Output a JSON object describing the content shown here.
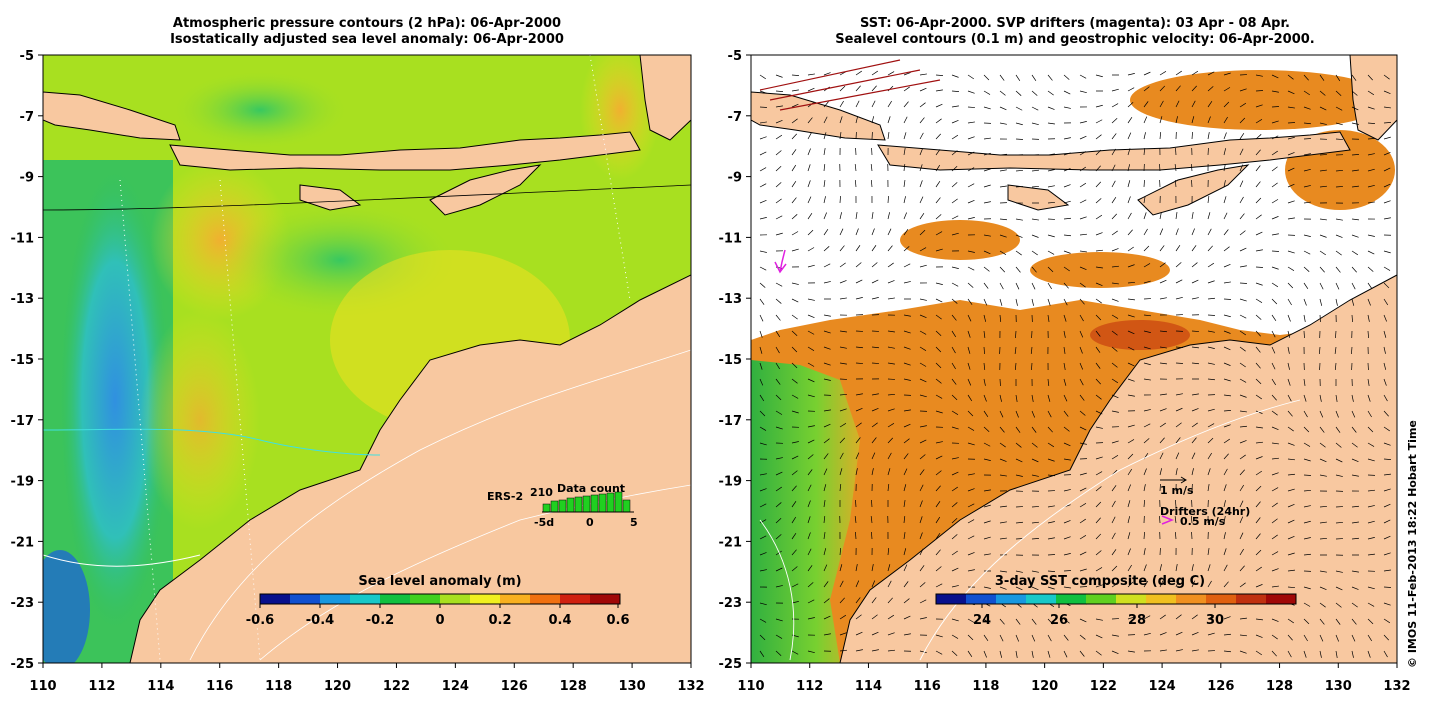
{
  "left_panel": {
    "title_line1": "Atmospheric pressure contours (2 hPa): 06-Apr-2000",
    "title_line2": "Isostatically adjusted sea level anomaly: 06-Apr-2000",
    "colorbar_label": "Sea level anomaly (m)",
    "colorbar_ticks": [
      "-0.6",
      "-0.4",
      "-0.2",
      "0",
      "0.2",
      "0.4",
      "0.6"
    ],
    "colorbar_colors": [
      "#08108c",
      "#1050d0",
      "#1898e0",
      "#18c8c8",
      "#10c040",
      "#40d020",
      "#a8e020",
      "#f0f020",
      "#f8b020",
      "#f07010",
      "#d02010",
      "#a00808"
    ],
    "inset_title": "Data count",
    "inset_count": "210",
    "inset_satellite": "ERS-2",
    "inset_ticks": [
      "-5d",
      "0",
      "5"
    ],
    "inset_bar_heights": [
      0.4,
      0.55,
      0.6,
      0.7,
      0.75,
      0.8,
      0.85,
      0.9,
      0.95,
      1.0,
      0.6
    ],
    "inset_bar_color": "#20d020",
    "inset_label_color": "#20d020"
  },
  "right_panel": {
    "title_line1": "SST: 06-Apr-2000. SVP drifters (magenta): 03 Apr - 08 Apr.",
    "title_line2": "Sealevel contours (0.1 m) and geostrophic velocity: 06-Apr-2000.",
    "colorbar_label": "3-day SST composite (deg C)",
    "colorbar_ticks": [
      "24",
      "26",
      "28",
      "30"
    ],
    "colorbar_colors": [
      "#08108c",
      "#1050d0",
      "#1898e0",
      "#18c8c8",
      "#10c040",
      "#60d020",
      "#d0e020",
      "#f0c020",
      "#f09020",
      "#e06010",
      "#c03010",
      "#a00808"
    ],
    "velocity_scale_label": "1 m/s",
    "drifters_label": "Drifters (24hr)",
    "drifter_scale_label": "0.5 m/s",
    "drifter_color": "#e020e0"
  },
  "axes": {
    "lon_ticks": [
      "110",
      "112",
      "114",
      "116",
      "118",
      "120",
      "122",
      "124",
      "126",
      "128",
      "130",
      "132"
    ],
    "lat_ticks": [
      "-5",
      "-7",
      "-9",
      "-11",
      "-13",
      "-15",
      "-17",
      "-19",
      "-21",
      "-23",
      "-25"
    ]
  },
  "colors": {
    "land": "#f8c8a0",
    "sla_high": "#f0e020",
    "sla_mid": "#a8e020",
    "sla_low": "#30c860",
    "sla_lowest": "#30a8e0",
    "sst_warm": "#e89020",
    "sst_cool": "#40c040"
  },
  "credit": "© IMOS 11-Feb-2013 18:22 Hobart Time"
}
